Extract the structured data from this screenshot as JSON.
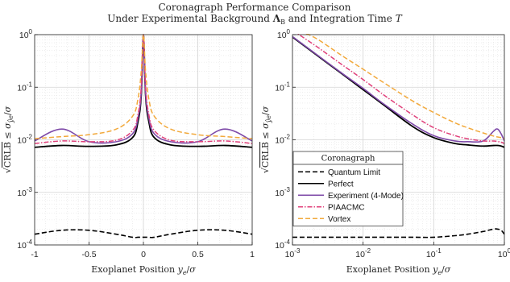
{
  "figure": {
    "title": "Coronagraph Performance Comparison",
    "subtitle": "Under Experimental Background Λ_B and Integration Time T",
    "ylabel": "√CRLB ≤ σ_ŷe / σ",
    "xlabel": "Exoplanet Position y_e / σ"
  },
  "legend": {
    "title": "Coronagraph",
    "entries": [
      {
        "name": "Quantum Limit",
        "color": "#000000",
        "dash": "dashed"
      },
      {
        "name": "Perfect",
        "color": "#000000",
        "dash": "solid"
      },
      {
        "name": "Experiment (4-Mode)",
        "color": "#7E4AA8",
        "dash": "solid"
      },
      {
        "name": "PIAACMC",
        "color": "#E0407A",
        "dash": "dashdot"
      },
      {
        "name": "Vortex",
        "color": "#F2A93B",
        "dash": "dashed"
      }
    ]
  },
  "chart_data": [
    {
      "type": "line",
      "xscale": "linear",
      "yscale": "log",
      "xlim": [
        -1,
        1
      ],
      "ylim": [
        0.0001,
        1
      ],
      "grid": true,
      "xticks": [
        "-1",
        "-0.5",
        "0",
        "0.5",
        "1"
      ],
      "yticks": [
        "10^-4",
        "10^-3",
        "10^-2",
        "10^-1",
        "10^0"
      ],
      "xlabel": "Exoplanet Position y_e / σ",
      "ylabel": "√CRLB ≤ σ_ŷe / σ",
      "x": [
        -1,
        -0.75,
        -0.5,
        -0.25,
        -0.1,
        -0.05,
        -0.02,
        0,
        0.02,
        0.05,
        0.1,
        0.25,
        0.5,
        0.75,
        1
      ],
      "series": [
        {
          "name": "Quantum Limit",
          "values": [
            0.00016,
            0.00019,
            0.00019,
            0.00016,
            0.00014,
            0.00014,
            0.00014,
            0.00014,
            0.00014,
            0.00014,
            0.00014,
            0.00016,
            0.00019,
            0.00019,
            0.00016
          ]
        },
        {
          "name": "Perfect",
          "values": [
            0.0072,
            0.0078,
            0.0075,
            0.008,
            0.011,
            0.022,
            0.07,
            1.0,
            0.07,
            0.022,
            0.011,
            0.008,
            0.0075,
            0.0078,
            0.0072
          ]
        },
        {
          "name": "Experiment (4-Mode)",
          "values": [
            0.0095,
            0.016,
            0.0092,
            0.0092,
            0.013,
            0.026,
            0.08,
            1.0,
            0.08,
            0.026,
            0.013,
            0.0092,
            0.0092,
            0.016,
            0.0095
          ]
        },
        {
          "name": "PIAACMC",
          "values": [
            0.0085,
            0.0095,
            0.0092,
            0.0098,
            0.015,
            0.03,
            0.1,
            1.0,
            0.1,
            0.03,
            0.015,
            0.0098,
            0.0092,
            0.0095,
            0.0085
          ]
        },
        {
          "name": "Vortex",
          "values": [
            0.0105,
            0.0115,
            0.0125,
            0.016,
            0.028,
            0.06,
            0.2,
            1.0,
            0.2,
            0.06,
            0.028,
            0.016,
            0.0125,
            0.0115,
            0.0105
          ]
        }
      ]
    },
    {
      "type": "line",
      "xscale": "log",
      "yscale": "log",
      "xlim": [
        0.001,
        1
      ],
      "ylim": [
        0.0001,
        1
      ],
      "grid": true,
      "xticks": [
        "10^-3",
        "10^-2",
        "10^-1",
        "10^0"
      ],
      "yticks": [
        "10^-4",
        "10^-3",
        "10^-2",
        "10^-1",
        "10^0"
      ],
      "xlabel": "Exoplanet Position y_e / σ",
      "x": [
        0.001,
        0.002,
        0.005,
        0.01,
        0.02,
        0.05,
        0.1,
        0.2,
        0.3,
        0.5,
        0.7,
        0.8,
        0.9,
        1.0
      ],
      "series": [
        {
          "name": "Quantum Limit",
          "values": [
            0.00014,
            0.00014,
            0.00014,
            0.00014,
            0.00014,
            0.00014,
            0.00014,
            0.00015,
            0.00016,
            0.00018,
            0.0002,
            0.0002,
            0.00019,
            0.00016
          ]
        },
        {
          "name": "Perfect",
          "values": [
            0.9,
            0.45,
            0.18,
            0.09,
            0.045,
            0.018,
            0.011,
            0.0085,
            0.008,
            0.0076,
            0.0078,
            0.0078,
            0.0076,
            0.0072
          ]
        },
        {
          "name": "Experiment (4-Mode)",
          "values": [
            0.92,
            0.46,
            0.185,
            0.095,
            0.047,
            0.02,
            0.012,
            0.0095,
            0.0092,
            0.0095,
            0.0145,
            0.016,
            0.013,
            0.0095
          ]
        },
        {
          "name": "PIAACMC",
          "values": [
            1.2,
            0.65,
            0.27,
            0.14,
            0.07,
            0.03,
            0.017,
            0.012,
            0.0105,
            0.0095,
            0.0095,
            0.0093,
            0.009,
            0.0085
          ]
        },
        {
          "name": "Vortex",
          "values": [
            1.3,
            0.9,
            0.4,
            0.22,
            0.12,
            0.055,
            0.033,
            0.021,
            0.017,
            0.0135,
            0.0118,
            0.0113,
            0.011,
            0.0105
          ]
        }
      ]
    }
  ]
}
